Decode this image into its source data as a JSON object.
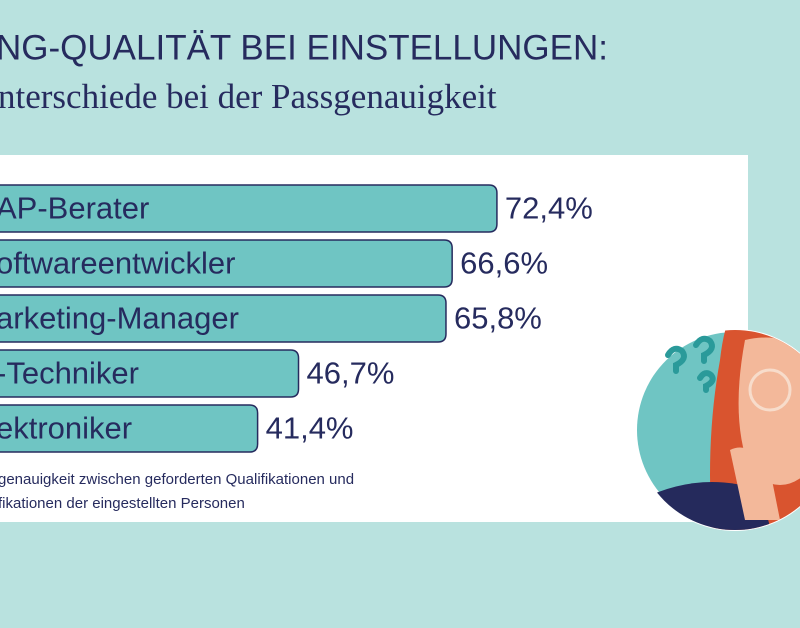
{
  "chart_data": {
    "type": "bar",
    "orientation": "horizontal",
    "title": "NG-QUALITÄT BEI EINSTELLUNGEN:",
    "subtitle": "nterschiede bei der Passgenauigkeit",
    "categories": [
      "AP-Berater",
      "oftwareentwickler",
      "arketing-Manager",
      "-Techniker",
      "ektroniker"
    ],
    "values": [
      72.4,
      66.6,
      65.8,
      46.7,
      41.4
    ],
    "value_labels": [
      "72,4%",
      "66,6%",
      "65,8%",
      "46,7%",
      "41,4%"
    ],
    "color": "#6fc5c3",
    "notes": [
      "genauigkeit zwischen geforderten Qualifikationen und",
      "fikationen der eingestellten Personen"
    ]
  }
}
